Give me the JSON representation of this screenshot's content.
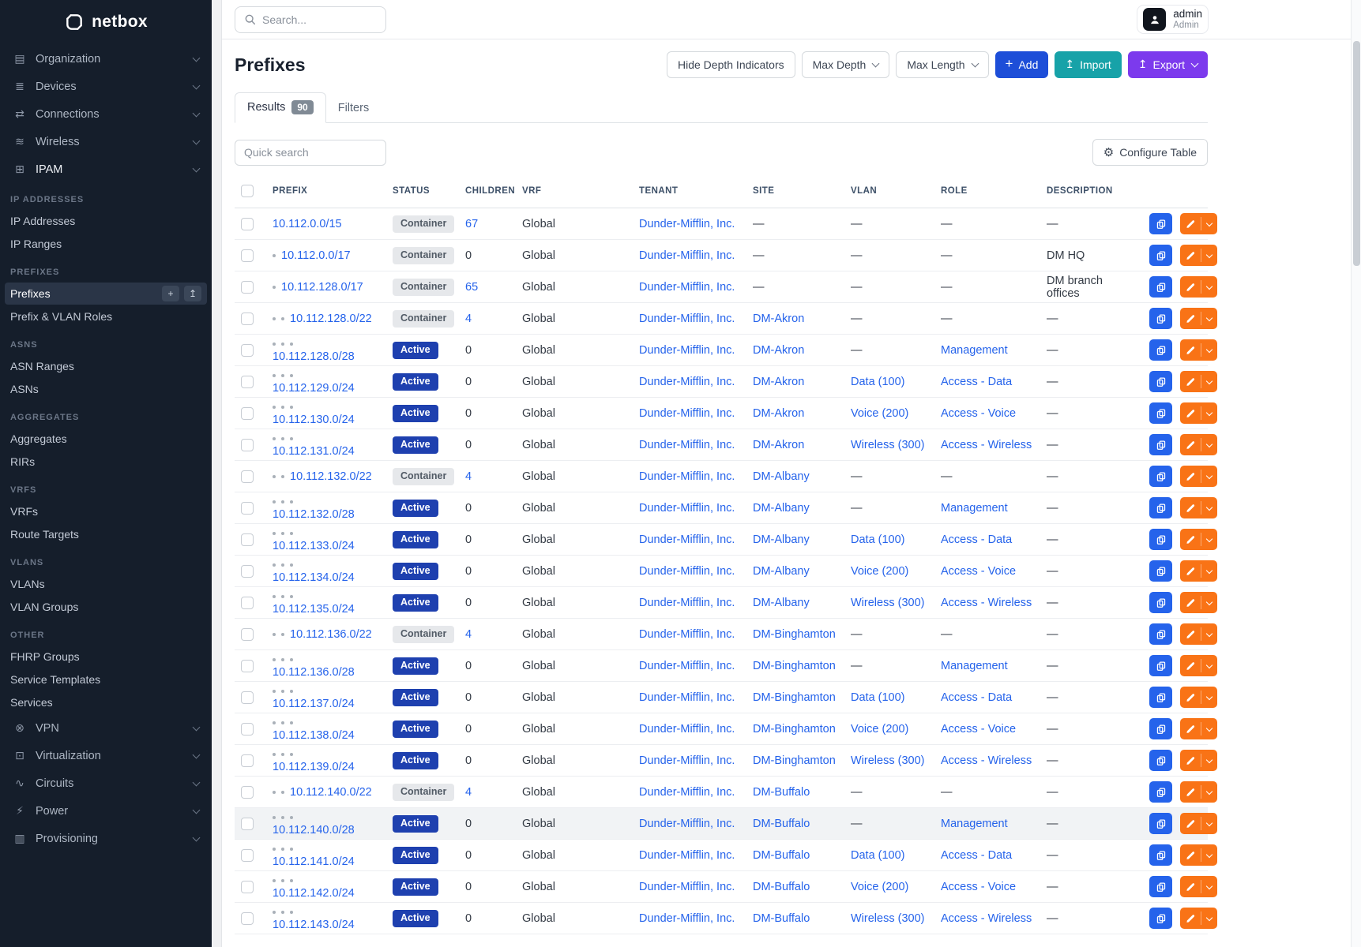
{
  "brand": {
    "name": "netbox"
  },
  "topbar": {
    "search_placeholder": "Search...",
    "user_name": "admin",
    "user_role": "Admin"
  },
  "sidebar": {
    "top_items": [
      {
        "label": "Organization",
        "icon": "organization-icon",
        "glyph": "▤"
      },
      {
        "label": "Devices",
        "icon": "devices-icon",
        "glyph": "≣"
      },
      {
        "label": "Connections",
        "icon": "connections-icon",
        "glyph": "⇄"
      },
      {
        "label": "Wireless",
        "icon": "wireless-icon",
        "glyph": "≋"
      },
      {
        "label": "IPAM",
        "icon": "ipam-icon",
        "glyph": "⊞",
        "open": true
      }
    ],
    "sections": [
      {
        "title": "IP Addresses",
        "items": [
          {
            "label": "IP Addresses"
          },
          {
            "label": "IP Ranges"
          }
        ]
      },
      {
        "title": "Prefixes",
        "items": [
          {
            "label": "Prefixes",
            "active": true
          },
          {
            "label": "Prefix & VLAN Roles"
          }
        ]
      },
      {
        "title": "ASNs",
        "items": [
          {
            "label": "ASN Ranges"
          },
          {
            "label": "ASNs"
          }
        ]
      },
      {
        "title": "Aggregates",
        "items": [
          {
            "label": "Aggregates"
          },
          {
            "label": "RIRs"
          }
        ]
      },
      {
        "title": "VRFs",
        "items": [
          {
            "label": "VRFs"
          },
          {
            "label": "Route Targets"
          }
        ]
      },
      {
        "title": "VLANs",
        "items": [
          {
            "label": "VLANs"
          },
          {
            "label": "VLAN Groups"
          }
        ]
      },
      {
        "title": "Other",
        "items": [
          {
            "label": "FHRP Groups"
          },
          {
            "label": "Service Templates"
          },
          {
            "label": "Services"
          }
        ]
      }
    ],
    "bottom_items": [
      {
        "label": "VPN",
        "icon": "vpn-icon",
        "glyph": "⊗"
      },
      {
        "label": "Virtualization",
        "icon": "virtualization-icon",
        "glyph": "⊡"
      },
      {
        "label": "Circuits",
        "icon": "circuits-icon",
        "glyph": "∿"
      },
      {
        "label": "Power",
        "icon": "power-icon",
        "glyph": "⚡"
      },
      {
        "label": "Provisioning",
        "icon": "provisioning-icon",
        "glyph": "▥"
      }
    ],
    "prefix_actions": {
      "add": "+",
      "import": "↥"
    }
  },
  "page": {
    "title": "Prefixes",
    "toolbar": {
      "hide_depth": "Hide Depth Indicators",
      "max_depth": "Max Depth",
      "max_length": "Max Length",
      "add": "Add",
      "import": "Import",
      "export": "Export"
    },
    "tabs": [
      {
        "label": "Results",
        "badge": "90"
      },
      {
        "label": "Filters"
      }
    ],
    "quick_search_placeholder": "Quick search",
    "configure_table": "Configure Table"
  },
  "colors": {
    "link": "#2563eb",
    "active_badge": "#1e40af",
    "container_badge_bg": "#e6e8eb",
    "add_button": "#1d4ed8",
    "import_button": "#17a2a8",
    "export_button": "#7c3aed",
    "copy_button": "#2563eb",
    "edit_button": "#f97316",
    "sidebar_bg": "#151e2b"
  },
  "table": {
    "columns": [
      "Prefix",
      "Status",
      "Children",
      "VRF",
      "Tenant",
      "Site",
      "VLAN",
      "Role",
      "Description"
    ],
    "rows": [
      {
        "depth": 0,
        "prefix": "10.112.0.0/15",
        "status": "Container",
        "children": "67",
        "vrf": "Global",
        "tenant": "Dunder-Mifflin, Inc.",
        "site": "—",
        "vlan": "—",
        "role": "—",
        "description": "—"
      },
      {
        "depth": 1,
        "prefix": "10.112.0.0/17",
        "status": "Container",
        "children": "0",
        "vrf": "Global",
        "tenant": "Dunder-Mifflin, Inc.",
        "site": "—",
        "vlan": "—",
        "role": "—",
        "description": "DM HQ"
      },
      {
        "depth": 1,
        "prefix": "10.112.128.0/17",
        "status": "Container",
        "children": "65",
        "vrf": "Global",
        "tenant": "Dunder-Mifflin, Inc.",
        "site": "—",
        "vlan": "—",
        "role": "—",
        "description": "DM branch offices"
      },
      {
        "depth": 2,
        "prefix": "10.112.128.0/22",
        "status": "Container",
        "children": "4",
        "vrf": "Global",
        "tenant": "Dunder-Mifflin, Inc.",
        "site": "DM-Akron",
        "vlan": "—",
        "role": "—",
        "description": "—"
      },
      {
        "depth": 3,
        "prefix": "10.112.128.0/28",
        "status": "Active",
        "children": "0",
        "vrf": "Global",
        "tenant": "Dunder-Mifflin, Inc.",
        "site": "DM-Akron",
        "vlan": "—",
        "role": "Management",
        "description": "—"
      },
      {
        "depth": 3,
        "prefix": "10.112.129.0/24",
        "status": "Active",
        "children": "0",
        "vrf": "Global",
        "tenant": "Dunder-Mifflin, Inc.",
        "site": "DM-Akron",
        "vlan": "Data (100)",
        "role": "Access - Data",
        "description": "—"
      },
      {
        "depth": 3,
        "prefix": "10.112.130.0/24",
        "status": "Active",
        "children": "0",
        "vrf": "Global",
        "tenant": "Dunder-Mifflin, Inc.",
        "site": "DM-Akron",
        "vlan": "Voice (200)",
        "role": "Access - Voice",
        "description": "—"
      },
      {
        "depth": 3,
        "prefix": "10.112.131.0/24",
        "status": "Active",
        "children": "0",
        "vrf": "Global",
        "tenant": "Dunder-Mifflin, Inc.",
        "site": "DM-Akron",
        "vlan": "Wireless (300)",
        "role": "Access - Wireless",
        "description": "—"
      },
      {
        "depth": 2,
        "prefix": "10.112.132.0/22",
        "status": "Container",
        "children": "4",
        "vrf": "Global",
        "tenant": "Dunder-Mifflin, Inc.",
        "site": "DM-Albany",
        "vlan": "—",
        "role": "—",
        "description": "—"
      },
      {
        "depth": 3,
        "prefix": "10.112.132.0/28",
        "status": "Active",
        "children": "0",
        "vrf": "Global",
        "tenant": "Dunder-Mifflin, Inc.",
        "site": "DM-Albany",
        "vlan": "—",
        "role": "Management",
        "description": "—"
      },
      {
        "depth": 3,
        "prefix": "10.112.133.0/24",
        "status": "Active",
        "children": "0",
        "vrf": "Global",
        "tenant": "Dunder-Mifflin, Inc.",
        "site": "DM-Albany",
        "vlan": "Data (100)",
        "role": "Access - Data",
        "description": "—"
      },
      {
        "depth": 3,
        "prefix": "10.112.134.0/24",
        "status": "Active",
        "children": "0",
        "vrf": "Global",
        "tenant": "Dunder-Mifflin, Inc.",
        "site": "DM-Albany",
        "vlan": "Voice (200)",
        "role": "Access - Voice",
        "description": "—"
      },
      {
        "depth": 3,
        "prefix": "10.112.135.0/24",
        "status": "Active",
        "children": "0",
        "vrf": "Global",
        "tenant": "Dunder-Mifflin, Inc.",
        "site": "DM-Albany",
        "vlan": "Wireless (300)",
        "role": "Access - Wireless",
        "description": "—"
      },
      {
        "depth": 2,
        "prefix": "10.112.136.0/22",
        "status": "Container",
        "children": "4",
        "vrf": "Global",
        "tenant": "Dunder-Mifflin, Inc.",
        "site": "DM-Binghamton",
        "vlan": "—",
        "role": "—",
        "description": "—"
      },
      {
        "depth": 3,
        "prefix": "10.112.136.0/28",
        "status": "Active",
        "children": "0",
        "vrf": "Global",
        "tenant": "Dunder-Mifflin, Inc.",
        "site": "DM-Binghamton",
        "vlan": "—",
        "role": "Management",
        "description": "—"
      },
      {
        "depth": 3,
        "prefix": "10.112.137.0/24",
        "status": "Active",
        "children": "0",
        "vrf": "Global",
        "tenant": "Dunder-Mifflin, Inc.",
        "site": "DM-Binghamton",
        "vlan": "Data (100)",
        "role": "Access - Data",
        "description": "—"
      },
      {
        "depth": 3,
        "prefix": "10.112.138.0/24",
        "status": "Active",
        "children": "0",
        "vrf": "Global",
        "tenant": "Dunder-Mifflin, Inc.",
        "site": "DM-Binghamton",
        "vlan": "Voice (200)",
        "role": "Access - Voice",
        "description": "—"
      },
      {
        "depth": 3,
        "prefix": "10.112.139.0/24",
        "status": "Active",
        "children": "0",
        "vrf": "Global",
        "tenant": "Dunder-Mifflin, Inc.",
        "site": "DM-Binghamton",
        "vlan": "Wireless (300)",
        "role": "Access - Wireless",
        "description": "—"
      },
      {
        "depth": 2,
        "prefix": "10.112.140.0/22",
        "status": "Container",
        "children": "4",
        "vrf": "Global",
        "tenant": "Dunder-Mifflin, Inc.",
        "site": "DM-Buffalo",
        "vlan": "—",
        "role": "—",
        "description": "—"
      },
      {
        "depth": 3,
        "prefix": "10.112.140.0/28",
        "status": "Active",
        "children": "0",
        "vrf": "Global",
        "tenant": "Dunder-Mifflin, Inc.",
        "site": "DM-Buffalo",
        "vlan": "—",
        "role": "Management",
        "description": "—",
        "highlight": true
      },
      {
        "depth": 3,
        "prefix": "10.112.141.0/24",
        "status": "Active",
        "children": "0",
        "vrf": "Global",
        "tenant": "Dunder-Mifflin, Inc.",
        "site": "DM-Buffalo",
        "vlan": "Data (100)",
        "role": "Access - Data",
        "description": "—"
      },
      {
        "depth": 3,
        "prefix": "10.112.142.0/24",
        "status": "Active",
        "children": "0",
        "vrf": "Global",
        "tenant": "Dunder-Mifflin, Inc.",
        "site": "DM-Buffalo",
        "vlan": "Voice (200)",
        "role": "Access - Voice",
        "description": "—"
      },
      {
        "depth": 3,
        "prefix": "10.112.143.0/24",
        "status": "Active",
        "children": "0",
        "vrf": "Global",
        "tenant": "Dunder-Mifflin, Inc.",
        "site": "DM-Buffalo",
        "vlan": "Wireless (300)",
        "role": "Access - Wireless",
        "description": "—"
      }
    ]
  }
}
